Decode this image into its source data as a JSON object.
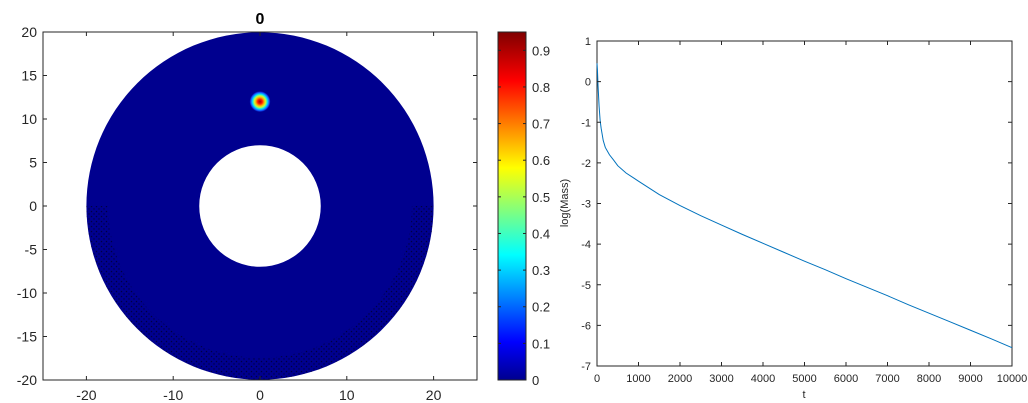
{
  "chart_data": [
    {
      "type": "heatmap",
      "title": "0",
      "xlabel": "",
      "ylabel": "",
      "xlim": [
        -25,
        25
      ],
      "ylim": [
        -20,
        20
      ],
      "xticks": [
        -20,
        -10,
        0,
        10,
        20
      ],
      "yticks": [
        20,
        15,
        10,
        5,
        0,
        -5,
        -10,
        -15,
        -20
      ],
      "domain": {
        "shape": "annulus",
        "center": [
          0,
          0
        ],
        "outer_radius": 20,
        "inner_radius": 7
      },
      "hotspot": {
        "center": [
          0,
          12
        ],
        "radius": 1.2,
        "peak": 0.95
      },
      "background_value": 0,
      "stippled_region": {
        "description": "lower band of outer ring",
        "from_angle_deg": 180,
        "to_angle_deg": 360,
        "inner_radius": 17.5,
        "outer_radius": 20
      },
      "colorbar": {
        "colormap": "jet",
        "range": [
          0,
          0.95
        ],
        "ticks": [
          0,
          0.1,
          0.2,
          0.3,
          0.4,
          0.5,
          0.6,
          0.7,
          0.8,
          0.9
        ]
      },
      "grid": false
    },
    {
      "type": "line",
      "title": "",
      "xlabel": "t",
      "ylabel": "log(Mass)",
      "xlim": [
        0,
        10000
      ],
      "ylim": [
        -7,
        1
      ],
      "xticks": [
        0,
        1000,
        2000,
        3000,
        4000,
        5000,
        6000,
        7000,
        8000,
        9000,
        10000
      ],
      "yticks": [
        1,
        0,
        -1,
        -2,
        -3,
        -4,
        -5,
        -6,
        -7
      ],
      "grid": false,
      "series": [
        {
          "color": "#0072BD",
          "x": [
            0,
            10,
            25,
            50,
            75,
            100,
            150,
            200,
            300,
            400,
            500,
            700,
            1000,
            1500,
            2000,
            2500,
            3000,
            3500,
            4000,
            4500,
            5000,
            5500,
            6000,
            6500,
            7000,
            7500,
            8000,
            8500,
            9000,
            9500,
            10000
          ],
          "y": [
            0.45,
            0.3,
            -0.1,
            -0.6,
            -0.95,
            -1.15,
            -1.45,
            -1.62,
            -1.8,
            -1.93,
            -2.07,
            -2.25,
            -2.45,
            -2.78,
            -3.05,
            -3.3,
            -3.53,
            -3.76,
            -3.98,
            -4.2,
            -4.42,
            -4.63,
            -4.85,
            -5.06,
            -5.27,
            -5.49,
            -5.7,
            -5.91,
            -6.12,
            -6.33,
            -6.55
          ]
        }
      ]
    }
  ]
}
